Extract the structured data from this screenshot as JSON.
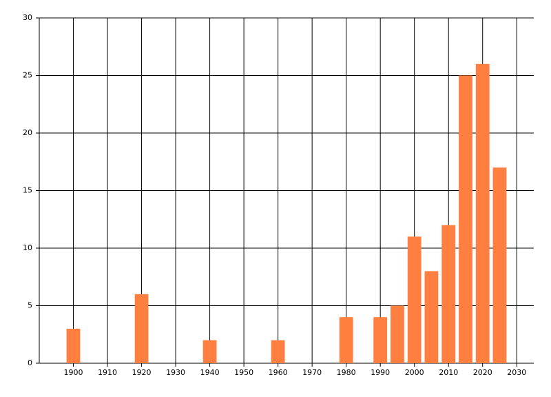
{
  "chart_data": {
    "type": "bar",
    "x": [
      1900,
      1920,
      1940,
      1960,
      1980,
      1990,
      1995,
      2000,
      2005,
      2010,
      2015,
      2020,
      2025
    ],
    "values": [
      3,
      6,
      2,
      2,
      4,
      4,
      5,
      11,
      8,
      12,
      25,
      26,
      17
    ],
    "color": "#ff7f40",
    "xlim": [
      1890,
      2035
    ],
    "xticks": [
      1900,
      1910,
      1920,
      1930,
      1940,
      1950,
      1960,
      1970,
      1980,
      1990,
      2000,
      2010,
      2020,
      2030
    ],
    "ylim": [
      0,
      30
    ],
    "yticks": [
      0,
      5,
      10,
      15,
      20,
      25,
      30
    ],
    "grid": true
  }
}
